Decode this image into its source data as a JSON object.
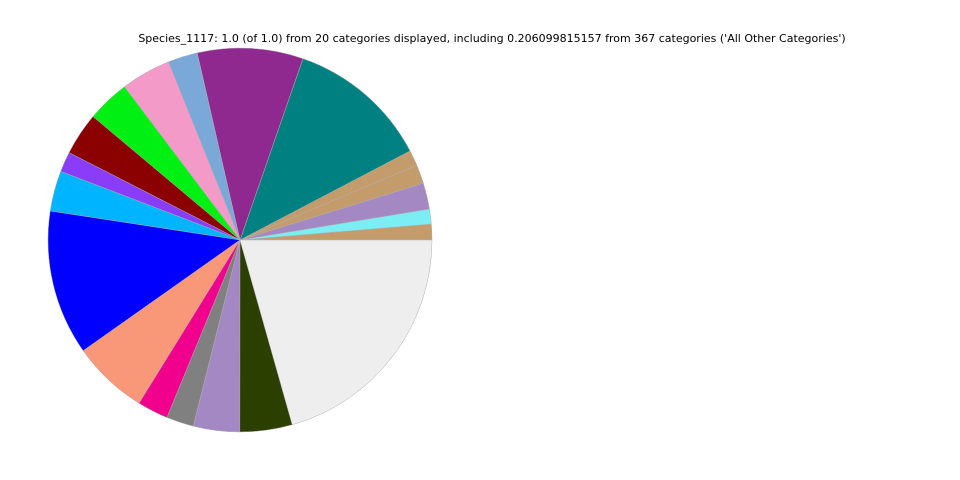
{
  "chart_data": {
    "type": "pie",
    "title": "Species_1117: 1.0 (of 1.0) from 20 categories displayed, including 0.206099815157 from 367 categories ('All Other Categories')",
    "values": [
      0.0133,
      0.0125,
      0.022,
      0.016,
      0.013,
      0.12,
      0.089,
      0.025,
      0.042,
      0.036,
      0.036,
      0.017,
      0.034,
      0.122,
      0.064,
      0.026,
      0.023,
      0.039,
      0.044,
      0.206099815157
    ],
    "colors": [
      "#c49c6c",
      "#7aeef2",
      "#a488c4",
      "#c49c6c",
      "#c49c6c",
      "#008080",
      "#8f298f",
      "#7aa8d8",
      "#f49ac8",
      "#00f014",
      "#8b0000",
      "#8a3cf8",
      "#00b4ff",
      "#0000ff",
      "#f89878",
      "#f0008c",
      "#808080",
      "#a488c4",
      "#2b3f00",
      "#eeeeee"
    ],
    "edgecolor": "#b0b0b0",
    "startangle": 0,
    "counterclock": true
  }
}
